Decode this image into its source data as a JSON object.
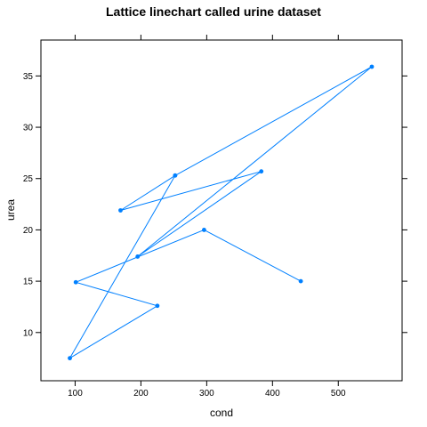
{
  "chart_data": {
    "type": "line",
    "title": "Lattice linechart called urine dataset",
    "xlabel": "cond",
    "ylabel": "urea",
    "xlim": [
      48,
      597
    ],
    "ylim": [
      5.3,
      38.5
    ],
    "x_ticks": [
      100,
      200,
      300,
      400,
      500
    ],
    "y_ticks": [
      10,
      15,
      20,
      25,
      30,
      35
    ],
    "grid": false,
    "legend": "none",
    "series": [
      {
        "color": "#0080ff",
        "x": [
          443,
          296,
          101,
          225,
          92,
          252,
          169,
          383,
          195,
          551,
          252
        ],
        "y": [
          15.0,
          20.0,
          14.9,
          12.6,
          7.5,
          25.3,
          21.9,
          25.7,
          17.4,
          35.9,
          25.3
        ]
      }
    ]
  }
}
